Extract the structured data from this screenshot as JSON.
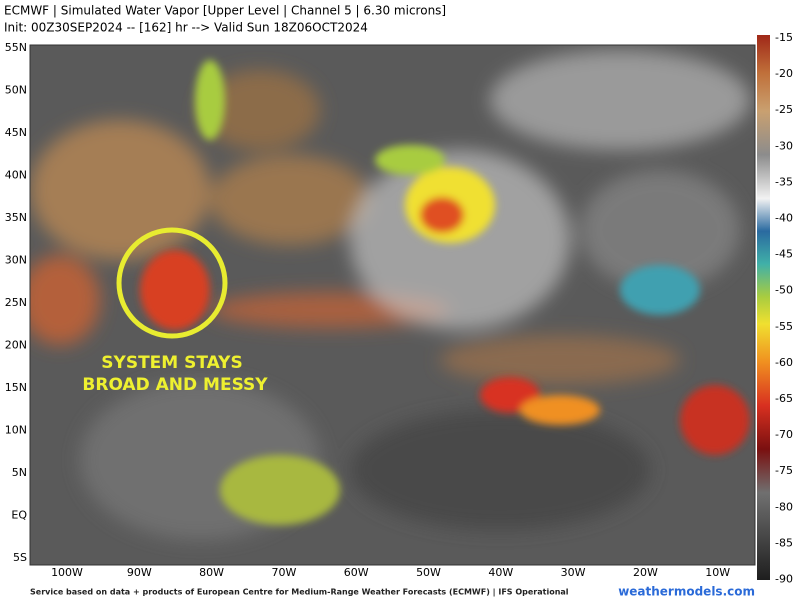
{
  "header": {
    "title": "ECMWF | Simulated Water Vapor [Upper Level | Channel 5 | 6.30 microns]",
    "subtitle": "Init: 00Z30SEP2024 -- [162] hr --> Valid Sun 18Z06OCT2024"
  },
  "map": {
    "lat_labels": [
      "55N",
      "50N",
      "45N",
      "40N",
      "35N",
      "30N",
      "25N",
      "20N",
      "15N",
      "10N",
      "5N",
      "EQ",
      "5S"
    ],
    "lon_labels": [
      "100W",
      "90W",
      "80W",
      "70W",
      "60W",
      "50W",
      "40W",
      "30W",
      "20W",
      "10W"
    ]
  },
  "annotation": {
    "lines": [
      "SYSTEM STAYS",
      "BROAD AND MESSY"
    ]
  },
  "colorbar": {
    "labels": [
      "-15",
      "-20",
      "-25",
      "-30",
      "-35",
      "-40",
      "-45",
      "-50",
      "-55",
      "-60",
      "-65",
      "-70",
      "-75",
      "-80",
      "-85",
      "-90"
    ]
  },
  "footer": {
    "credit": "Service based on data + products of European Centre for Medium-Range Weather Forecasts (ECMWF) | IFS Operational",
    "brand": "weathermodels.com"
  }
}
